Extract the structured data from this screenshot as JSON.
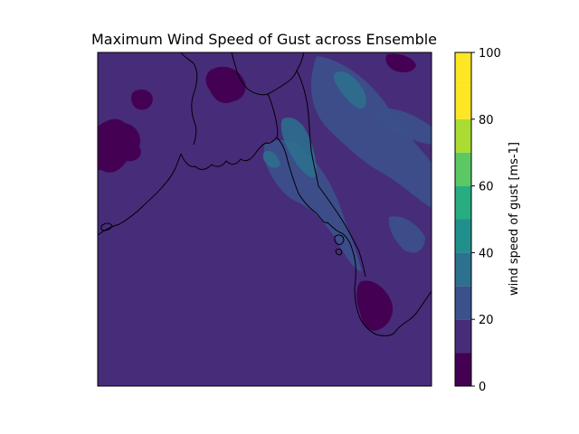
{
  "chart_data": {
    "type": "heatmap",
    "title": "Maximum Wind Speed of Gust across Ensemble",
    "description_map": "filled contour map over the Bay of Bengal region with coastlines",
    "colorbar": {
      "label": "wind speed of gust [ms-1]",
      "levels": [
        0,
        10,
        20,
        30,
        40,
        50,
        60,
        70,
        80,
        90,
        100
      ],
      "ticks": [
        0,
        20,
        40,
        60,
        80,
        100
      ],
      "tick_labels": [
        "0",
        "20",
        "40",
        "60",
        "80",
        "100"
      ],
      "colors": [
        "#440154",
        "#472c7a",
        "#3b518b",
        "#2c718e",
        "#21908d",
        "#27ad81",
        "#5cc863",
        "#aadc32",
        "#fde725",
        "#fde725"
      ]
    },
    "dominant_level_range": [
      10,
      20
    ],
    "features": [
      {
        "region": "ocean and most land",
        "range": [
          10,
          20
        ]
      },
      {
        "region": "scattered land patches (west, south-east peninsula)",
        "range": [
          0,
          10
        ]
      },
      {
        "region": "north-east land ridges and coastal band",
        "range": [
          20,
          40
        ]
      }
    ]
  }
}
